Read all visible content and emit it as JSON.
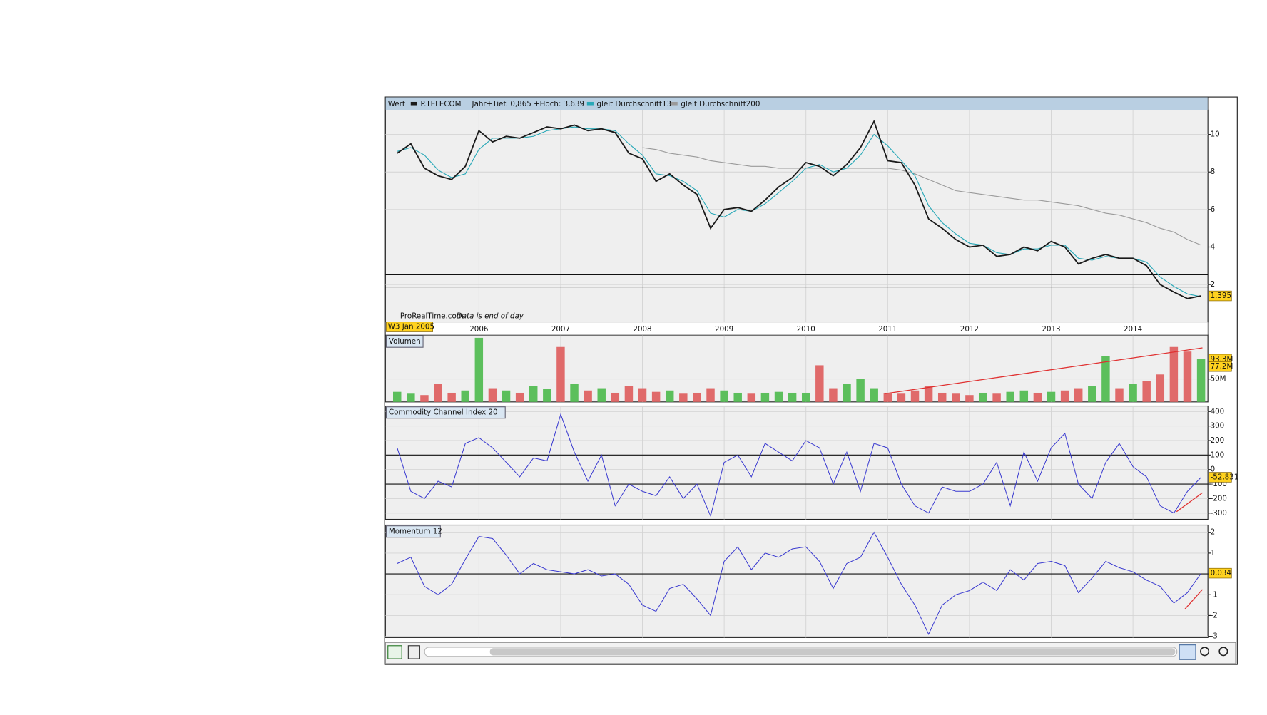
{
  "chart_data": [
    {
      "type": "line",
      "title": "Wert",
      "subtitle": "Jahr+Tief: 0,865 +Hoch: 3,639",
      "source": "ProRealTime.com",
      "note": "Data is end of day",
      "start_label": "W3 Jan 2005",
      "categories": [
        null,
        null,
        null,
        null,
        null,
        null,
        "2006",
        null,
        null,
        null,
        null,
        null,
        "2007",
        null,
        null,
        null,
        null,
        null,
        "2008",
        null,
        null,
        null,
        null,
        null,
        "2009",
        null,
        null,
        null,
        null,
        null,
        "2010",
        null,
        null,
        null,
        null,
        null,
        "2011",
        null,
        null,
        null,
        null,
        null,
        "2012",
        null,
        null,
        null,
        null,
        null,
        "2013",
        null,
        null,
        null,
        null,
        null,
        "2014",
        null,
        null,
        null,
        null,
        null
      ],
      "ylim": [
        0,
        11.3
      ],
      "yticks": [
        2,
        4,
        6,
        8,
        10
      ],
      "hlines": [
        2.52,
        1.87
      ],
      "grid": true,
      "series": [
        {
          "name": "P.TELECOM",
          "color": "#1a1a1a",
          "last_label": "1,395",
          "values": [
            9.0,
            9.5,
            8.2,
            7.8,
            7.6,
            8.3,
            10.2,
            9.6,
            9.9,
            9.8,
            10.1,
            10.4,
            10.3,
            10.5,
            10.2,
            10.3,
            10.1,
            9.0,
            8.7,
            7.5,
            7.9,
            7.3,
            6.8,
            5.0,
            6.0,
            6.1,
            5.9,
            6.5,
            7.2,
            7.7,
            8.5,
            8.3,
            7.8,
            8.4,
            9.3,
            10.7,
            8.6,
            8.5,
            7.3,
            5.5,
            5.0,
            4.4,
            4.0,
            4.1,
            3.5,
            3.6,
            4.0,
            3.8,
            4.3,
            4.0,
            3.1,
            3.4,
            3.6,
            3.4,
            3.4,
            3.0,
            2.0,
            1.6,
            1.25,
            1.395
          ]
        },
        {
          "name": "gleit Durchschnitt13",
          "color": "#2aa9b8",
          "values": [
            9.1,
            9.3,
            8.9,
            8.1,
            7.7,
            7.9,
            9.2,
            9.8,
            9.8,
            9.8,
            9.9,
            10.2,
            10.3,
            10.4,
            10.3,
            10.3,
            10.2,
            9.5,
            8.9,
            7.9,
            7.8,
            7.5,
            7.0,
            5.8,
            5.6,
            6.0,
            5.9,
            6.3,
            6.9,
            7.5,
            8.2,
            8.4,
            8.0,
            8.2,
            8.9,
            10.0,
            9.4,
            8.6,
            7.8,
            6.2,
            5.3,
            4.7,
            4.2,
            4.1,
            3.7,
            3.6,
            3.9,
            3.9,
            4.1,
            4.1,
            3.4,
            3.3,
            3.5,
            3.4,
            3.4,
            3.2,
            2.4,
            1.9,
            1.5,
            1.35
          ]
        },
        {
          "name": "gleit Durchschnitt200",
          "color": "#9a9a9a",
          "values": [
            null,
            null,
            null,
            null,
            null,
            null,
            null,
            null,
            null,
            null,
            null,
            null,
            null,
            null,
            null,
            null,
            null,
            null,
            9.3,
            9.2,
            9.0,
            8.9,
            8.8,
            8.6,
            8.5,
            8.4,
            8.3,
            8.3,
            8.2,
            8.2,
            8.2,
            8.2,
            8.2,
            8.2,
            8.2,
            8.2,
            8.2,
            8.1,
            7.9,
            7.6,
            7.3,
            7.0,
            6.9,
            6.8,
            6.7,
            6.6,
            6.5,
            6.5,
            6.4,
            6.3,
            6.2,
            6.0,
            5.8,
            5.7,
            5.5,
            5.3,
            5.0,
            4.8,
            4.4,
            4.1
          ]
        }
      ]
    },
    {
      "type": "bar",
      "title": "Volumen",
      "up_color": "#5cbf5c",
      "down_color": "#e06a6a",
      "values": [
        22,
        18,
        15,
        40,
        20,
        25,
        140,
        30,
        25,
        20,
        35,
        28,
        120,
        40,
        25,
        30,
        20,
        35,
        30,
        22,
        25,
        18,
        20,
        30,
        25,
        20,
        18,
        20,
        22,
        20,
        20,
        80,
        30,
        40,
        50,
        30,
        20,
        18,
        25,
        35,
        20,
        18,
        15,
        20,
        18,
        22,
        25,
        20,
        22,
        25,
        30,
        35,
        100,
        30,
        40,
        45,
        60,
        120,
        110,
        93.3
      ],
      "ylim": [
        0,
        146
      ],
      "yticks": [
        {
          "value": 50,
          "label": "50M"
        }
      ],
      "markers": [
        {
          "value": 93.3,
          "label": "93,3M"
        },
        {
          "value": 77.2,
          "label": "77,2M"
        }
      ],
      "trendline": {
        "color": "#e03030",
        "x": [
          35.8,
          59.1
        ],
        "y": [
          18,
          118
        ]
      }
    },
    {
      "type": "line",
      "title": "Commodity Channel Index 20",
      "color": "#3a3ad0",
      "last_label": "-52,831",
      "values": [
        150,
        -150,
        -200,
        -80,
        -120,
        180,
        220,
        150,
        50,
        -50,
        80,
        60,
        380,
        120,
        -80,
        100,
        -250,
        -100,
        -150,
        -180,
        -50,
        -200,
        -100,
        -320,
        50,
        100,
        -50,
        180,
        120,
        60,
        200,
        150,
        -100,
        120,
        -150,
        180,
        150,
        -100,
        -250,
        -300,
        -120,
        -150,
        -150,
        -100,
        50,
        -250,
        120,
        -80,
        150,
        250,
        -100,
        -200,
        50,
        180,
        20,
        -50,
        -250,
        -300,
        -150,
        -52.831
      ],
      "ylim": [
        -343,
        438
      ],
      "yticks": [
        -300,
        -200,
        -100,
        0,
        100,
        200,
        300,
        400
      ],
      "hlines": [
        100,
        -100
      ],
      "trendline": {
        "color": "#e03030",
        "x": [
          57.2,
          59.1
        ],
        "y": [
          -290,
          -160
        ]
      }
    },
    {
      "type": "line",
      "title": "Momentum 12",
      "color": "#3a3ad0",
      "last_label": "0,034",
      "values": [
        0.5,
        0.8,
        -0.6,
        -1.0,
        -0.5,
        0.7,
        1.8,
        1.7,
        0.9,
        0.0,
        0.5,
        0.2,
        0.1,
        0.0,
        0.2,
        -0.1,
        0.0,
        -0.5,
        -1.5,
        -1.8,
        -0.7,
        -0.5,
        -1.2,
        -2.0,
        0.6,
        1.3,
        0.2,
        1.0,
        0.8,
        1.2,
        1.3,
        0.6,
        -0.7,
        0.5,
        0.8,
        2.0,
        0.8,
        -0.5,
        -1.5,
        -2.9,
        -1.5,
        -1.0,
        -0.8,
        -0.4,
        -0.8,
        0.2,
        -0.3,
        0.5,
        0.6,
        0.4,
        -0.9,
        -0.2,
        0.6,
        0.3,
        0.1,
        -0.3,
        -0.6,
        -1.4,
        -0.9,
        0.034
      ],
      "ylim": [
        -3.06,
        2.35
      ],
      "yticks": [
        -3,
        -2,
        -1,
        0,
        1,
        2
      ],
      "hlines": [
        0
      ],
      "trendline": {
        "color": "#e03030",
        "x": [
          57.8,
          59.1
        ],
        "y": [
          -1.7,
          -0.75
        ]
      }
    }
  ]
}
